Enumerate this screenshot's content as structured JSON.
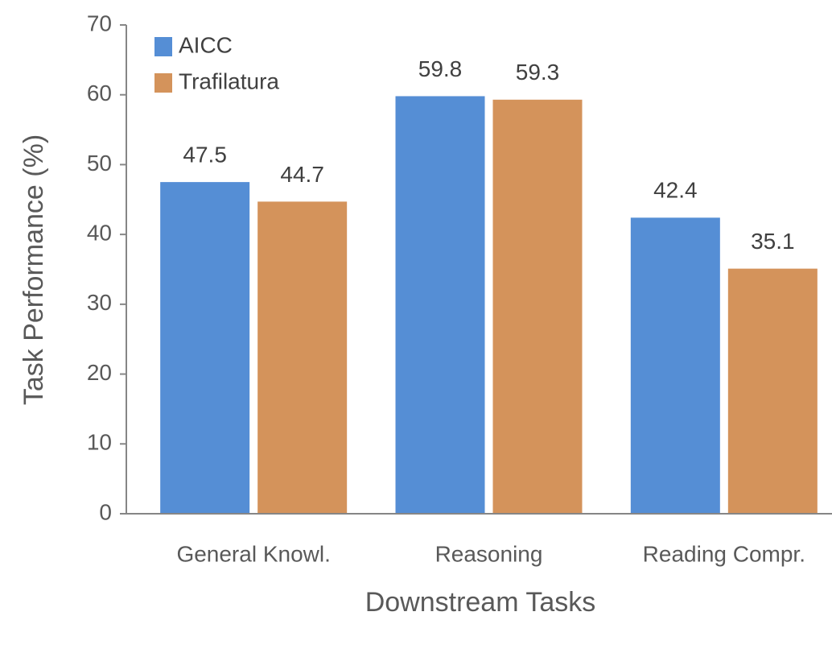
{
  "chart_data": {
    "type": "bar",
    "x_label": "Downstream Tasks",
    "y_label": "Task Performance (%)",
    "categories": [
      "General Knowl.",
      "Reasoning",
      "Reading Compr."
    ],
    "series": [
      {
        "name": "AICC",
        "color": "#558ed5",
        "values": [
          47.5,
          59.8,
          42.4
        ]
      },
      {
        "name": "Trafilatura",
        "color": "#d4935b",
        "values": [
          44.7,
          59.3,
          35.1
        ]
      }
    ],
    "ylim": [
      0,
      70
    ],
    "yticks": [
      0,
      10,
      20,
      30,
      40,
      50,
      60,
      70
    ],
    "grid": false,
    "legend": "upper left"
  }
}
